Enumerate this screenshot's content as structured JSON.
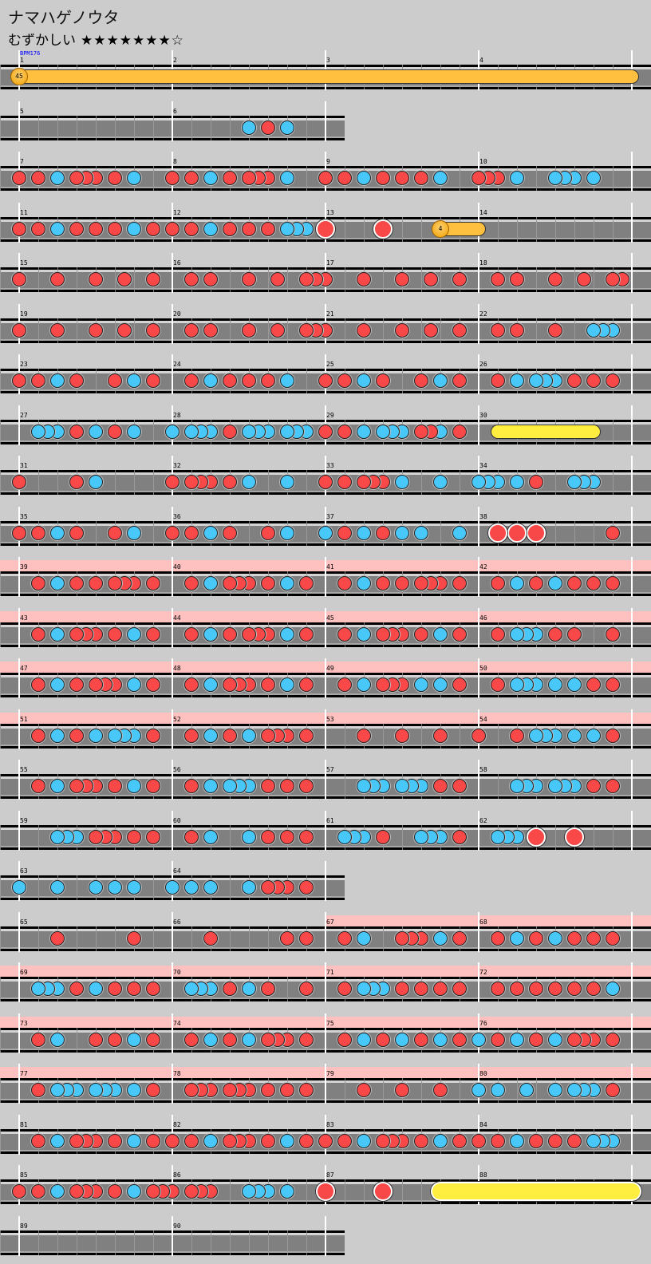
{
  "header": {
    "title": "ナマハゲノウタ",
    "difficulty_label": "むずかしい",
    "stars": "★★★★★★★☆",
    "star_level": 7,
    "star_max": 8
  },
  "bpm_marker": {
    "measure": 1,
    "label": "BPM176"
  },
  "colors": {
    "background": "#cccccc",
    "lane": "#808080",
    "don": "#f84848",
    "ka": "#48c8f8",
    "gogo": "#ffc0c0",
    "balloon": "#ffc040",
    "roll": "#ffee40"
  },
  "note_legend": {
    "d": "don",
    "k": "ka",
    "D": "big-don",
    "K": "big-ka",
    ".": "none"
  },
  "rows": [
    [
      1,
      2,
      3,
      4
    ],
    [
      5,
      6
    ],
    [
      7,
      8,
      9,
      10
    ],
    [
      11,
      12,
      13,
      14
    ],
    [
      15,
      16,
      17,
      18
    ],
    [
      19,
      20,
      21,
      22
    ],
    [
      23,
      24,
      25,
      26
    ],
    [
      27,
      28,
      29,
      30
    ],
    [
      31,
      32,
      33,
      34
    ],
    [
      35,
      36,
      37,
      38
    ],
    [
      39,
      40,
      41,
      42
    ],
    [
      43,
      44,
      45,
      46
    ],
    [
      47,
      48,
      49,
      50
    ],
    [
      51,
      52,
      53,
      54
    ],
    [
      55,
      56,
      57,
      58
    ],
    [
      59,
      60,
      61,
      62
    ],
    [
      63,
      64
    ],
    [
      65,
      66,
      67,
      68
    ],
    [
      69,
      70,
      71,
      72
    ],
    [
      73,
      74,
      75,
      76
    ],
    [
      77,
      78,
      79,
      80
    ],
    [
      81,
      82,
      83,
      84
    ],
    [
      85,
      86,
      87,
      88
    ],
    [
      89,
      90
    ]
  ],
  "gogo_measures": [
    39,
    40,
    41,
    42,
    43,
    44,
    45,
    46,
    47,
    48,
    49,
    50,
    51,
    52,
    53,
    54,
    67,
    68,
    69,
    70,
    71,
    72,
    73,
    74,
    75,
    76,
    77,
    78,
    79,
    80
  ],
  "measures": {
    "1": "................",
    "2": "................",
    "3": "................",
    "4": "................",
    "5": "................",
    "6": "........k.d.k...",
    "7": "d.d.k.ddd.d.k...",
    "8": "d.d.k.d.ddd.k...",
    "9": "d.d.k.d.d.d.k...",
    "10": "ddd.k...kkk.k...",
    "11": "d.d.k.d.d.d.k.d.",
    "12": "d.d.k.d.d.d.kkk.",
    "13": "D.....D.........",
    "14": "................",
    "15": "d...d...d..d..d.",
    "16": "..d.d...d..d..dd",
    "17": "d...d...d..d..d.",
    "18": "..d.d...d..d..dd",
    "19": "d...d...d..d..d.",
    "20": "..d.d...d..d..dd",
    "21": "d...d...d..d..d.",
    "22": "..d.d...d...kkk.",
    "23": "d.d.k.d...d.k.d.",
    "24": "..d.k.d.d.d.k...",
    "25": "d.d.k.d...d.k.d.",
    "26": "..d.k.kkk.d.d.d.",
    "27": "..kkk.d.k.d.k...",
    "28": "k.kkk.d.kkk.kkk.",
    "29": "d.d.k.kkk.ddk.d.",
    "30": "................",
    "31": "d.....d.k.......",
    "32": "d.ddd.d.k...k...",
    "33": "d.d.ddd.k...k...",
    "34": "kkk.k.d...kkk...",
    "35": "d.d.k.d...d.k...",
    "36": "d.d.k.d...d.k...",
    "37": "k.d.k.d.k.k...k.",
    "38": "..D.D.D.......d.",
    "39": "..d.k.d.d.ddd.d.",
    "40": "..d.k.ddd.d.k.d.",
    "41": "..d.k.d.d.ddd.d.",
    "42": "..d.k.d.k.d.d.d.",
    "43": "..d.k.ddd.d.k.d.",
    "44": "..d.k.d.ddd.k.d.",
    "45": "..d.k.ddd.d.k.d.",
    "46": "..d.kkk.d.d...d.",
    "47": "..d.k.d.ddd.k.d.",
    "48": "..d.k.ddd.d.k.d.",
    "49": "..d.k.ddd.k.k.d.",
    "50": "..d.kkk.k.k.d.d.",
    "51": "..d.k.d.k.kkk.d.",
    "52": "..d.k.d.k.ddd.d.",
    "53": "....d...d...d...",
    "54": "d...d.kkk.k.k.d.",
    "55": "..d.k.ddd.d.k.d.",
    "56": "..d.k.kkk.d.d.d.",
    "57": "....kkk.kkk.d.d.",
    "58": "....kkk.kkk.d.d.",
    "59": "....kkk.ddd.d.d.",
    "60": "..d.k...k.d.d.d.",
    "61": "..kkk.d...kkk.d.",
    "62": "..kkk.D...D.....",
    "63": "k...k...k.k.k...",
    "64": "k.k.k...k.ddd.d.",
    "65": "....d.......d...",
    "66": "....d.......d.d.",
    "67": "..d.k...ddd.k.d.",
    "68": "..d.k.d.k.d.d.d.",
    "69": "..kkk.d.k.d.d.d.",
    "70": "..kkk.d.k.d...d.",
    "71": "..d.kkk.d.d.d.d.",
    "72": "..d.d.d.d.d.d.k.",
    "73": "..d.k...d.d.k.d.",
    "74": "..d.k.d.k.ddd.d.",
    "75": "..d.k.d.k.d.k.d.",
    "76": "k.d.k.d.k.ddd.d.",
    "77": "..d.kkk.kkk.k.d.",
    "78": "..ddd.ddd.d.d.d.",
    "79": "....d...d...d...",
    "80": "k.k..k..k.kkk.d.",
    "81": "..d.k.ddd.d.k.d.",
    "82": "d.d.k.ddd.d.k.d.",
    "83": "d.d.k.ddd.d.k.d.",
    "84": "d.d.k.d.d.d.kkk.",
    "85": "d.d.k.ddd.d.k.dd",
    "86": "d.ddd...kkk.k...",
    "87": "D.....D.........",
    "88": "................",
    "89": "................",
    "90": "................"
  },
  "long_notes": [
    {
      "type": "balloon",
      "start_measure": 1,
      "start_pos": 0,
      "end_measure": 4,
      "end_pos": 16,
      "count": "45"
    },
    {
      "type": "balloon",
      "start_measure": 13,
      "start_pos": 12,
      "end_measure": 14,
      "end_pos": 0,
      "count": "4"
    },
    {
      "type": "roll",
      "start_measure": 30,
      "start_pos": 2,
      "end_measure": 30,
      "end_pos": 12
    },
    {
      "type": "big-roll",
      "start_measure": 87,
      "start_pos": 12,
      "end_measure": 88,
      "end_pos": 16
    }
  ]
}
